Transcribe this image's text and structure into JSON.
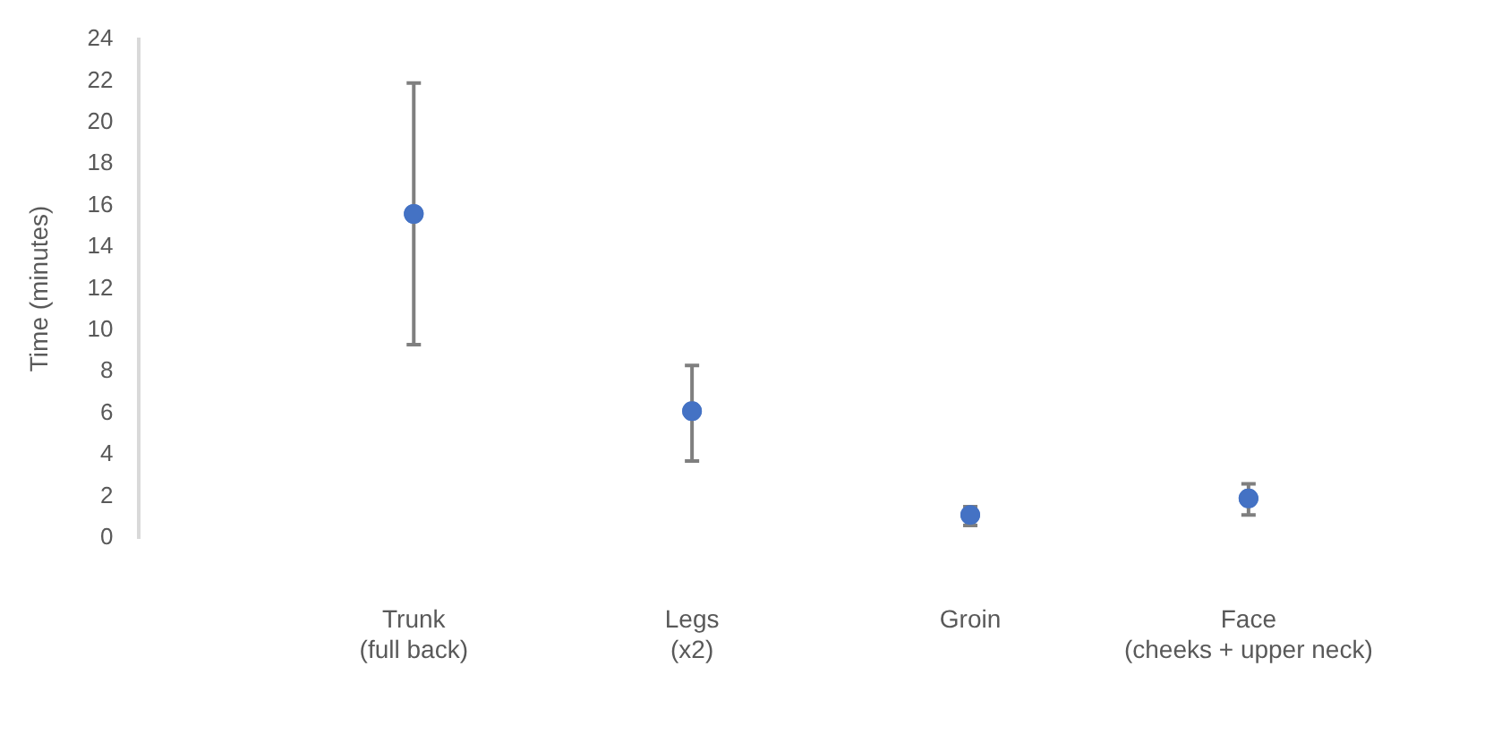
{
  "chart_data": {
    "type": "scatter",
    "ylabel": "Time (minutes)",
    "categories": [
      "Trunk\n(full back)",
      "Legs\n(x2)",
      "Groin",
      "Face\n(cheeks + upper neck)"
    ],
    "values": [
      15.6,
      6.1,
      1.1,
      1.9
    ],
    "errors": [
      [
        9.3,
        21.9
      ],
      [
        3.7,
        8.3
      ],
      [
        0.6,
        1.5
      ],
      [
        1.1,
        2.6
      ]
    ],
    "color": "#4472c4",
    "marker": "circle",
    "ylim": [
      0,
      24
    ],
    "yticks": [
      0,
      2,
      4,
      6,
      8,
      10,
      12,
      14,
      16,
      18,
      20,
      22,
      24
    ],
    "grid": false,
    "legend": false
  }
}
